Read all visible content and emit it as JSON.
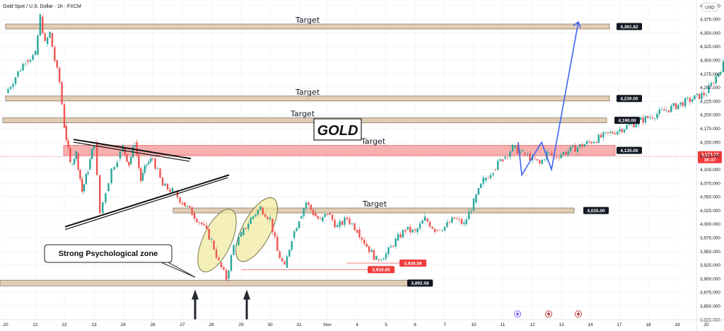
{
  "header": {
    "symbol_title": "Gold Spot / U.S. Dollar · 1h · FXCM",
    "currency": "USD"
  },
  "chart_data": {
    "type": "candlestick",
    "title": "GOLD",
    "ylim": [
      3825,
      4400
    ],
    "y_ticks": [
      3825,
      3850,
      3875,
      3900,
      3925,
      3950,
      3975,
      4000,
      4025,
      4050,
      4075,
      4100,
      4125,
      4150,
      4175,
      4200,
      4225,
      4250,
      4275,
      4300,
      4325,
      4350,
      4375,
      4400
    ],
    "x_ticks": [
      "20",
      "21",
      "22",
      "23",
      "24",
      "26",
      "27",
      "28",
      "29",
      "30",
      "31",
      "Nov",
      "4",
      "5",
      "6",
      "7",
      "10",
      "11",
      "12",
      "13",
      "14",
      "17",
      "18",
      "19",
      "20"
    ],
    "price_path": [
      [
        "20",
        4240
      ],
      [
        "20",
        4270
      ],
      [
        "20",
        4300
      ],
      [
        "21",
        4310
      ],
      [
        "21",
        4380
      ],
      [
        "21",
        4330
      ],
      [
        "21",
        4350
      ],
      [
        "21",
        4300
      ],
      [
        "21",
        4260
      ],
      [
        "22",
        4180
      ],
      [
        "22",
        4110
      ],
      [
        "22",
        4130
      ],
      [
        "22",
        4060
      ],
      [
        "22",
        4100
      ],
      [
        "23",
        4150
      ],
      [
        "23",
        4020
      ],
      [
        "23",
        4060
      ],
      [
        "23",
        4100
      ],
      [
        "23",
        4120
      ],
      [
        "24",
        4140
      ],
      [
        "24",
        4110
      ],
      [
        "24",
        4150
      ],
      [
        "24",
        4080
      ],
      [
        "24",
        4110
      ],
      [
        "26",
        4120
      ],
      [
        "26",
        4070
      ],
      [
        "26",
        4060
      ],
      [
        "27",
        4040
      ],
      [
        "27",
        4020
      ],
      [
        "27",
        4000
      ],
      [
        "28",
        3970
      ],
      [
        "28",
        3930
      ],
      [
        "28",
        3900
      ],
      [
        "28",
        3960
      ],
      [
        "29",
        3980
      ],
      [
        "29",
        4010
      ],
      [
        "29",
        4030
      ],
      [
        "30",
        4010
      ],
      [
        "30",
        3950
      ],
      [
        "30",
        3920
      ],
      [
        "30",
        3975
      ],
      [
        "31",
        4010
      ],
      [
        "31",
        4040
      ],
      [
        "31",
        4020
      ],
      [
        "31",
        4005
      ],
      [
        "Nov",
        4020
      ],
      [
        "Nov",
        3995
      ],
      [
        "Nov",
        4010
      ],
      [
        "4",
        3990
      ],
      [
        "4",
        3960
      ],
      [
        "4",
        3935
      ],
      [
        "5",
        3945
      ],
      [
        "5",
        3970
      ],
      [
        "5",
        3990
      ],
      [
        "6",
        3985
      ],
      [
        "6",
        4010
      ],
      [
        "6",
        3990
      ],
      [
        "7",
        3995
      ],
      [
        "7",
        4010
      ],
      [
        "7",
        4000
      ],
      [
        "10",
        4040
      ],
      [
        "10",
        4080
      ],
      [
        "10",
        4100
      ],
      [
        "11",
        4120
      ],
      [
        "11",
        4140
      ],
      [
        "11",
        4130
      ],
      [
        "12",
        4120
      ],
      [
        "12",
        4110
      ],
      [
        "12",
        4130
      ],
      [
        "12",
        4123
      ]
    ],
    "last_price": {
      "label": "4,123.23",
      "countdown": "35:37",
      "value": 4123.23
    },
    "target_zones": [
      {
        "value": 4361.82,
        "label": "4,361.82",
        "caption": "Target"
      },
      {
        "value": 4230.0,
        "label": "4,230.00",
        "caption": "Target"
      },
      {
        "value": 4190.0,
        "label": "4,190.00",
        "caption": "Target"
      },
      {
        "value": 4135.0,
        "label": "4,135.00",
        "caption": "Target"
      },
      {
        "value": 4025.0,
        "label": "4,025.00",
        "caption": "Target"
      }
    ],
    "support_zone": {
      "value": 3892,
      "label": "3,892.58"
    },
    "lows": [
      {
        "value": 3916.65,
        "label": "3,916.65"
      },
      {
        "value": 3928.56,
        "label": "3,928.56"
      }
    ],
    "annotations": {
      "callout": "Strong Psychological zone"
    },
    "projection": [
      [
        "12",
        4150
      ],
      [
        "12",
        4090
      ],
      [
        "13",
        4150
      ],
      [
        "13",
        4100
      ],
      [
        "15",
        4370
      ]
    ],
    "colors": {
      "up": "#26a69a",
      "down": "#ef5350",
      "projection": "#3b63f2",
      "resistance": "#f49494",
      "zone": "#dcc3a8",
      "ellipse": "#f1e9a1"
    }
  }
}
